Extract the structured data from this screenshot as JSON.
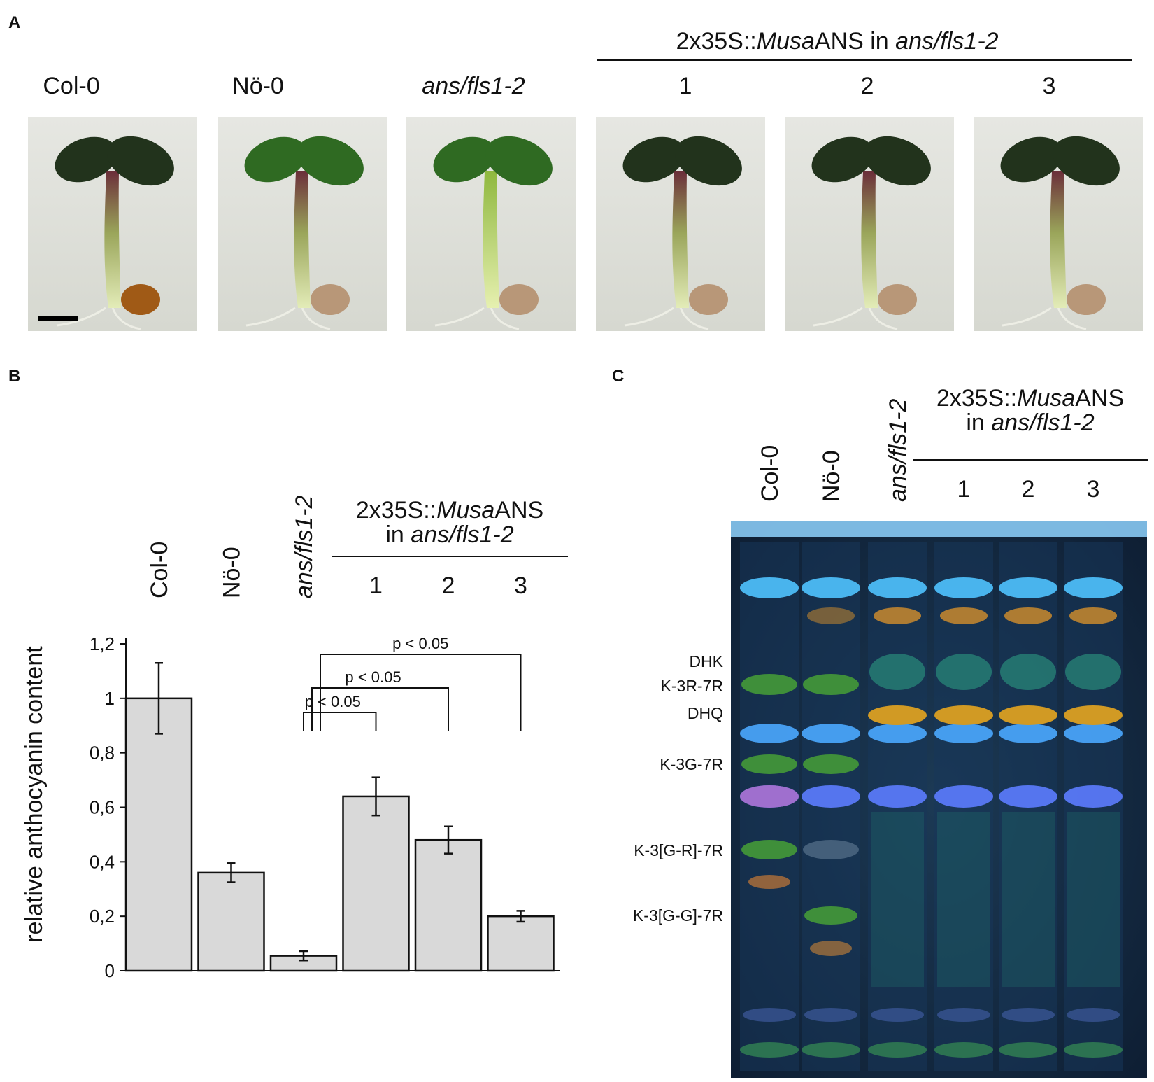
{
  "panels": {
    "a": "A",
    "b": "B",
    "c": "C"
  },
  "panel_a": {
    "transgene_prefix": "2x35S::",
    "transgene_italic": "Musa",
    "transgene_suffix": "ANS in ",
    "background": "ans/fls1-2",
    "lines": [
      {
        "label": "Col-0",
        "italic": false
      },
      {
        "label": "Nö-0",
        "italic": false
      },
      {
        "label": "ans/fls1-2",
        "italic": true
      },
      {
        "label": "1",
        "italic": false
      },
      {
        "label": "2",
        "italic": false
      },
      {
        "label": "3",
        "italic": false
      }
    ]
  },
  "panel_b": {
    "transgene_line1_prefix": "2x35S::",
    "transgene_line1_italic": "Musa",
    "transgene_line1_suffix": "ANS",
    "transgene_line2_prefix": "in ",
    "transgene_line2_italic": "ans/fls1-2"
  },
  "chart_data": {
    "type": "bar",
    "categories": [
      "Col-0",
      "Nö-0",
      "ans/fls1-2",
      "1",
      "2",
      "3"
    ],
    "values": [
      1.0,
      0.36,
      0.055,
      0.64,
      0.48,
      0.2
    ],
    "errors": [
      0.13,
      0.035,
      0.017,
      0.07,
      0.05,
      0.02
    ],
    "ylabel": "relative anthocyanin content",
    "ylim": [
      0,
      1.2
    ],
    "yticks": [
      "0",
      "0,2",
      "0,4",
      "0,6",
      "0,8",
      "1",
      "1,2"
    ],
    "bar_color": "#d9d9d9",
    "significance": [
      {
        "from": "ans/fls1-2",
        "to": "1",
        "label": "p < 0.05"
      },
      {
        "from": "ans/fls1-2",
        "to": "2",
        "label": "p < 0.05"
      },
      {
        "from": "ans/fls1-2",
        "to": "3",
        "label": "p < 0.05"
      }
    ]
  },
  "panel_c": {
    "transgene_line1": "2x35S::MusaANS",
    "transgene_line1_prefix": "2x35S::",
    "transgene_line1_italic": "Musa",
    "transgene_line1_suffix": "ANS",
    "transgene_line2_prefix": "in ",
    "transgene_line2_italic": "ans/fls1-2",
    "lanes": [
      "Col-0",
      "Nö-0",
      "ans/fls1-2",
      "1",
      "2",
      "3"
    ],
    "band_labels": [
      "DHK",
      "K-3R-7R",
      "DHQ",
      "K-3G-7R",
      "K-3[G-R]-7R",
      "K-3[G-G]-7R"
    ]
  }
}
